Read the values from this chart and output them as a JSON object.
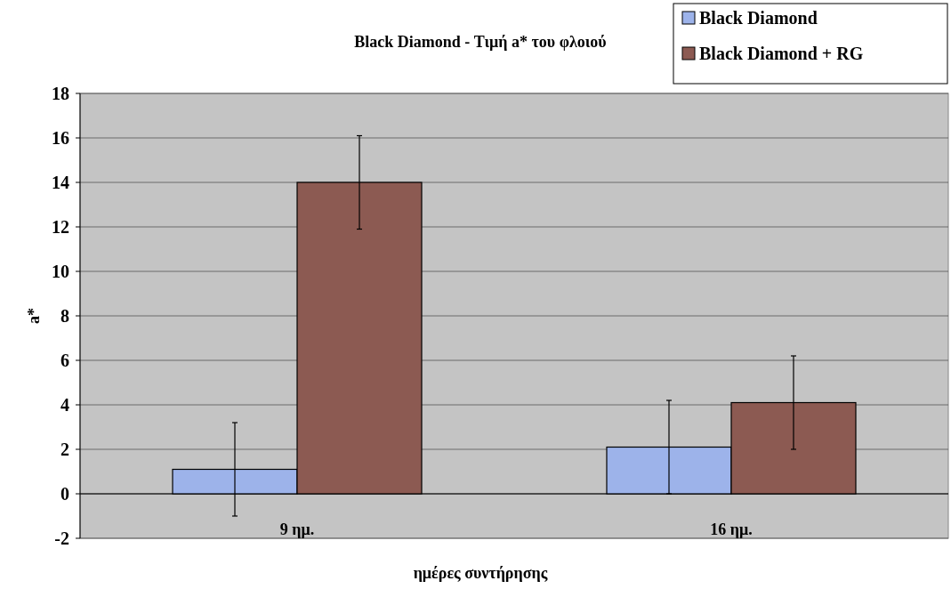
{
  "chart_data": {
    "type": "bar",
    "title": "Black Diamond - Τιμή a* του φλοιού",
    "xlabel": "ημέρες συντήρησης",
    "ylabel": "a*",
    "categories": [
      "9 ημ.",
      "16 ημ."
    ],
    "series": [
      {
        "name": "Black Diamond",
        "color": "#9db3ea",
        "values": [
          1.1,
          2.1
        ],
        "errors": [
          2.1,
          2.1
        ]
      },
      {
        "name": "Black Diamond + RG",
        "color": "#8c5a52",
        "values": [
          14,
          4.1
        ],
        "errors": [
          2.1,
          2.1
        ]
      }
    ],
    "ylim": [
      -2,
      18
    ],
    "yticks": [
      -2,
      0,
      2,
      4,
      6,
      8,
      10,
      12,
      14,
      16,
      18
    ],
    "grid": "y",
    "legend": "top right"
  }
}
